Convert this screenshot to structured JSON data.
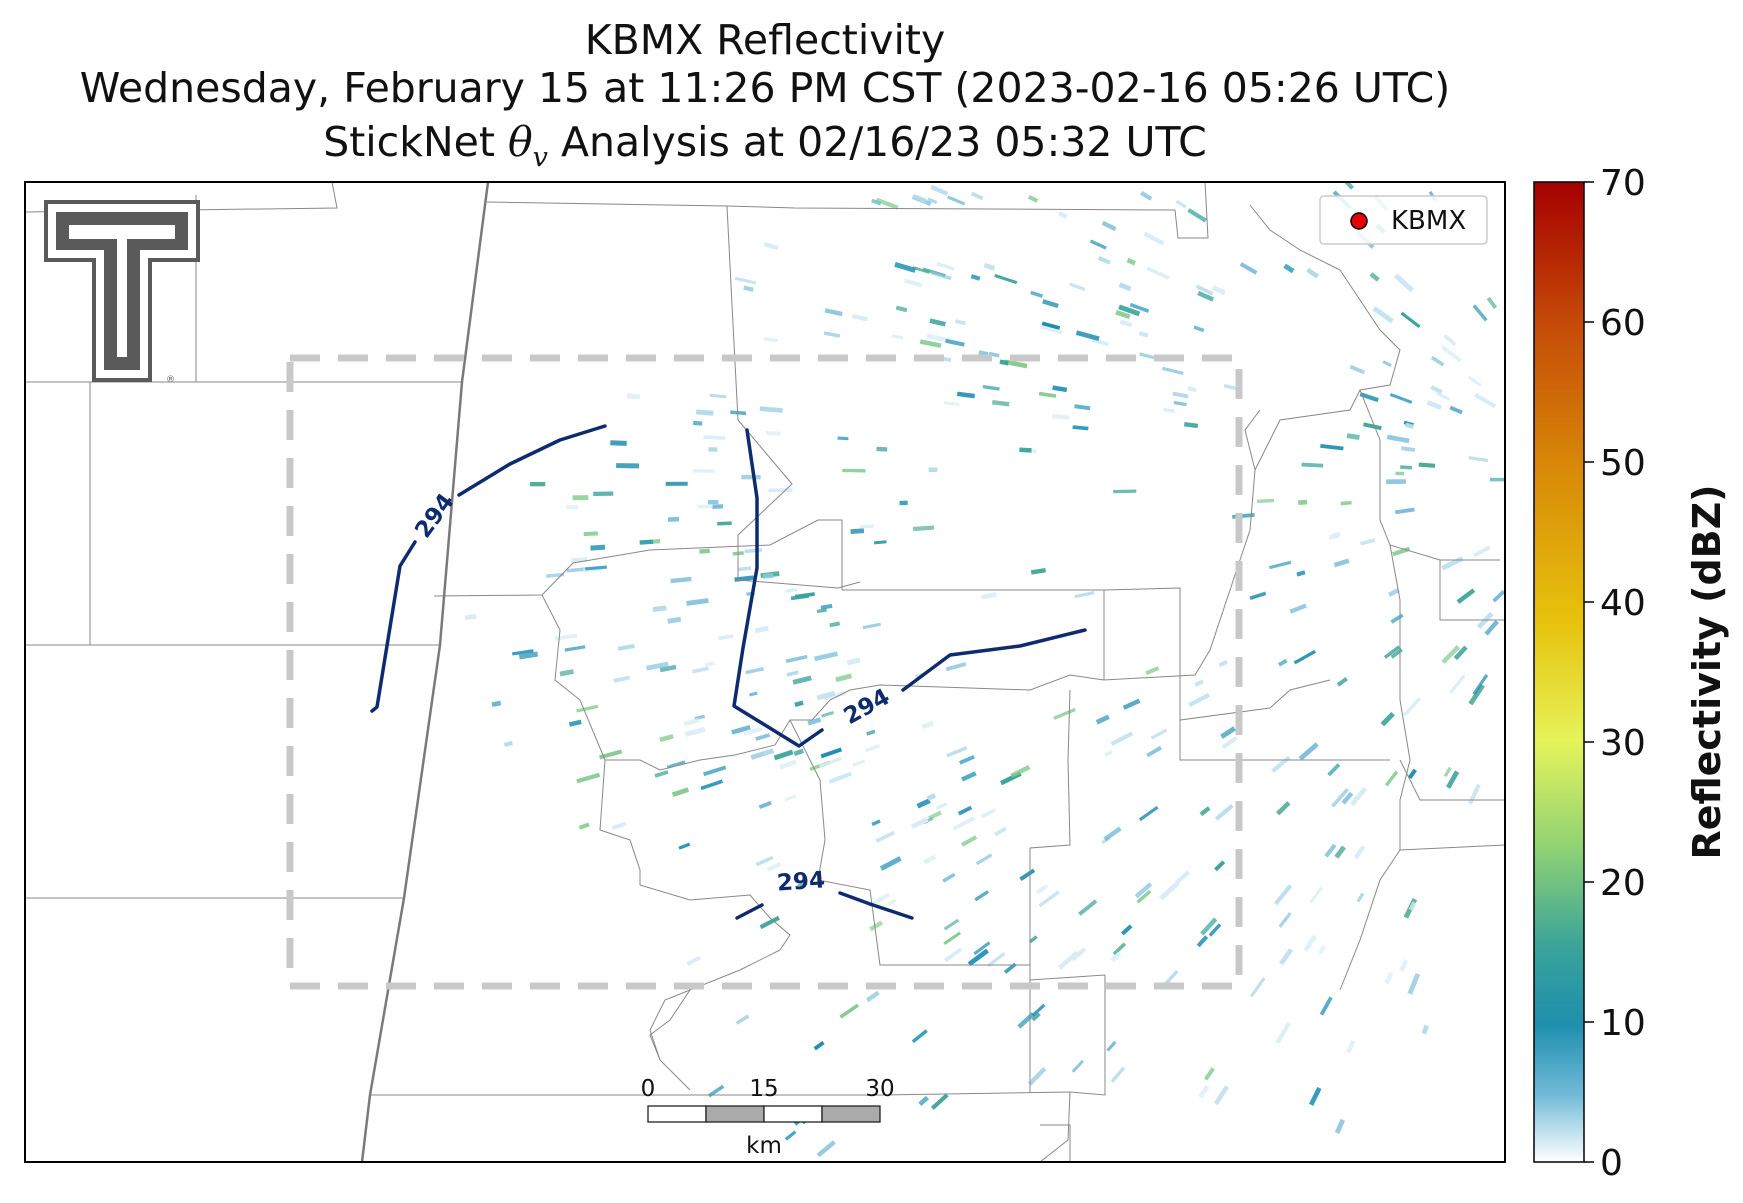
{
  "title": {
    "line1": "KBMX Reflectivity",
    "line2": "Wednesday, February 15 at 11:26 PM CST (2023-02-16 05:26 UTC)",
    "line3_prefix": "StickNet ",
    "line3_symbol": "θ",
    "line3_subscript": "v",
    "line3_suffix": " Analysis at 02/16/23 05:32 UTC"
  },
  "legend": {
    "label": "KBMX",
    "marker_color": "#e8000b"
  },
  "contour": {
    "label_text": "294",
    "color": "#0d2b6e"
  },
  "scale_bar": {
    "ticks": [
      "0",
      "15",
      "30"
    ],
    "unit": "km"
  },
  "colorbar": {
    "label": "Reflectivity (dBZ)",
    "ticks": [
      "0",
      "10",
      "20",
      "30",
      "40",
      "50",
      "60",
      "70"
    ],
    "min": 0,
    "max": 70
  },
  "logo": {
    "name": "Texas Tech Double T",
    "color": "#5a5a5a"
  }
}
